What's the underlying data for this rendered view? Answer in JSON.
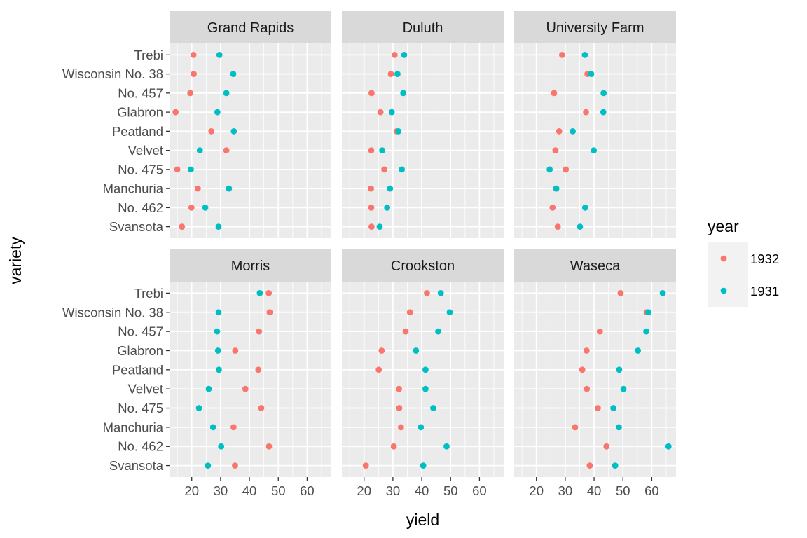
{
  "chart_data": {
    "type": "scatter",
    "xlabel": "yield",
    "ylabel": "variety",
    "xlim": [
      12.3,
      68.4
    ],
    "x_ticks": [
      20,
      30,
      40,
      50,
      60
    ],
    "x_tick_labels": [
      "20",
      "30",
      "40",
      "50",
      "60"
    ],
    "grid": true,
    "varieties": [
      "Trebi",
      "Wisconsin No. 38",
      "No. 457",
      "Glabron",
      "Peatland",
      "Velvet",
      "No. 475",
      "Manchuria",
      "No. 462",
      "Svansota"
    ],
    "legend": {
      "title": "year",
      "position": "right",
      "entries": [
        {
          "name": "1932",
          "color": "#F8766D"
        },
        {
          "name": "1931",
          "color": "#00BFC4"
        }
      ]
    },
    "panels": [
      {
        "site": "Grand Rapids",
        "1932": [
          20.6,
          20.7,
          19.5,
          14.4,
          26.8,
          32.0,
          15.0,
          22.1,
          19.9,
          16.6
        ],
        "1931": [
          29.6,
          34.4,
          32.0,
          28.9,
          34.6,
          22.8,
          19.7,
          32.9,
          24.7,
          29.3
        ]
      },
      {
        "site": "Duluth",
        "1932": [
          30.6,
          29.3,
          22.6,
          25.7,
          31.3,
          22.5,
          27.0,
          22.4,
          22.5,
          22.6
        ],
        "1931": [
          33.9,
          31.6,
          33.6,
          29.6,
          31.9,
          26.3,
          33.1,
          29.0,
          28.0,
          25.4
        ]
      },
      {
        "site": "University Farm",
        "1932": [
          28.9,
          37.7,
          26.1,
          37.2,
          27.9,
          26.6,
          30.2,
          26.8,
          25.6,
          27.4
        ],
        "1931": [
          36.8,
          39.0,
          43.3,
          43.2,
          32.6,
          39.9,
          24.6,
          26.9,
          36.9,
          35.1
        ]
      },
      {
        "site": "Morris",
        "1932": [
          46.7,
          47.0,
          43.3,
          35.1,
          43.1,
          38.6,
          44.1,
          34.5,
          46.8,
          35.0
        ],
        "1931": [
          43.6,
          29.3,
          28.8,
          29.1,
          29.4,
          25.9,
          22.5,
          27.4,
          30.2,
          25.6
        ]
      },
      {
        "site": "Crookston",
        "1932": [
          41.8,
          35.9,
          34.4,
          26.1,
          25.1,
          32.1,
          32.2,
          32.8,
          30.3,
          20.6
        ],
        "1931": [
          46.6,
          49.7,
          45.7,
          38.0,
          41.3,
          41.3,
          44.0,
          39.7,
          48.6,
          40.5
        ]
      },
      {
        "site": "Waseca",
        "1932": [
          49.2,
          58.2,
          42.0,
          37.4,
          35.9,
          37.5,
          41.3,
          33.4,
          44.3,
          38.5
        ],
        "1931": [
          63.8,
          58.8,
          58.1,
          55.2,
          48.7,
          50.2,
          46.7,
          48.6,
          65.8,
          47.3
        ]
      }
    ]
  }
}
